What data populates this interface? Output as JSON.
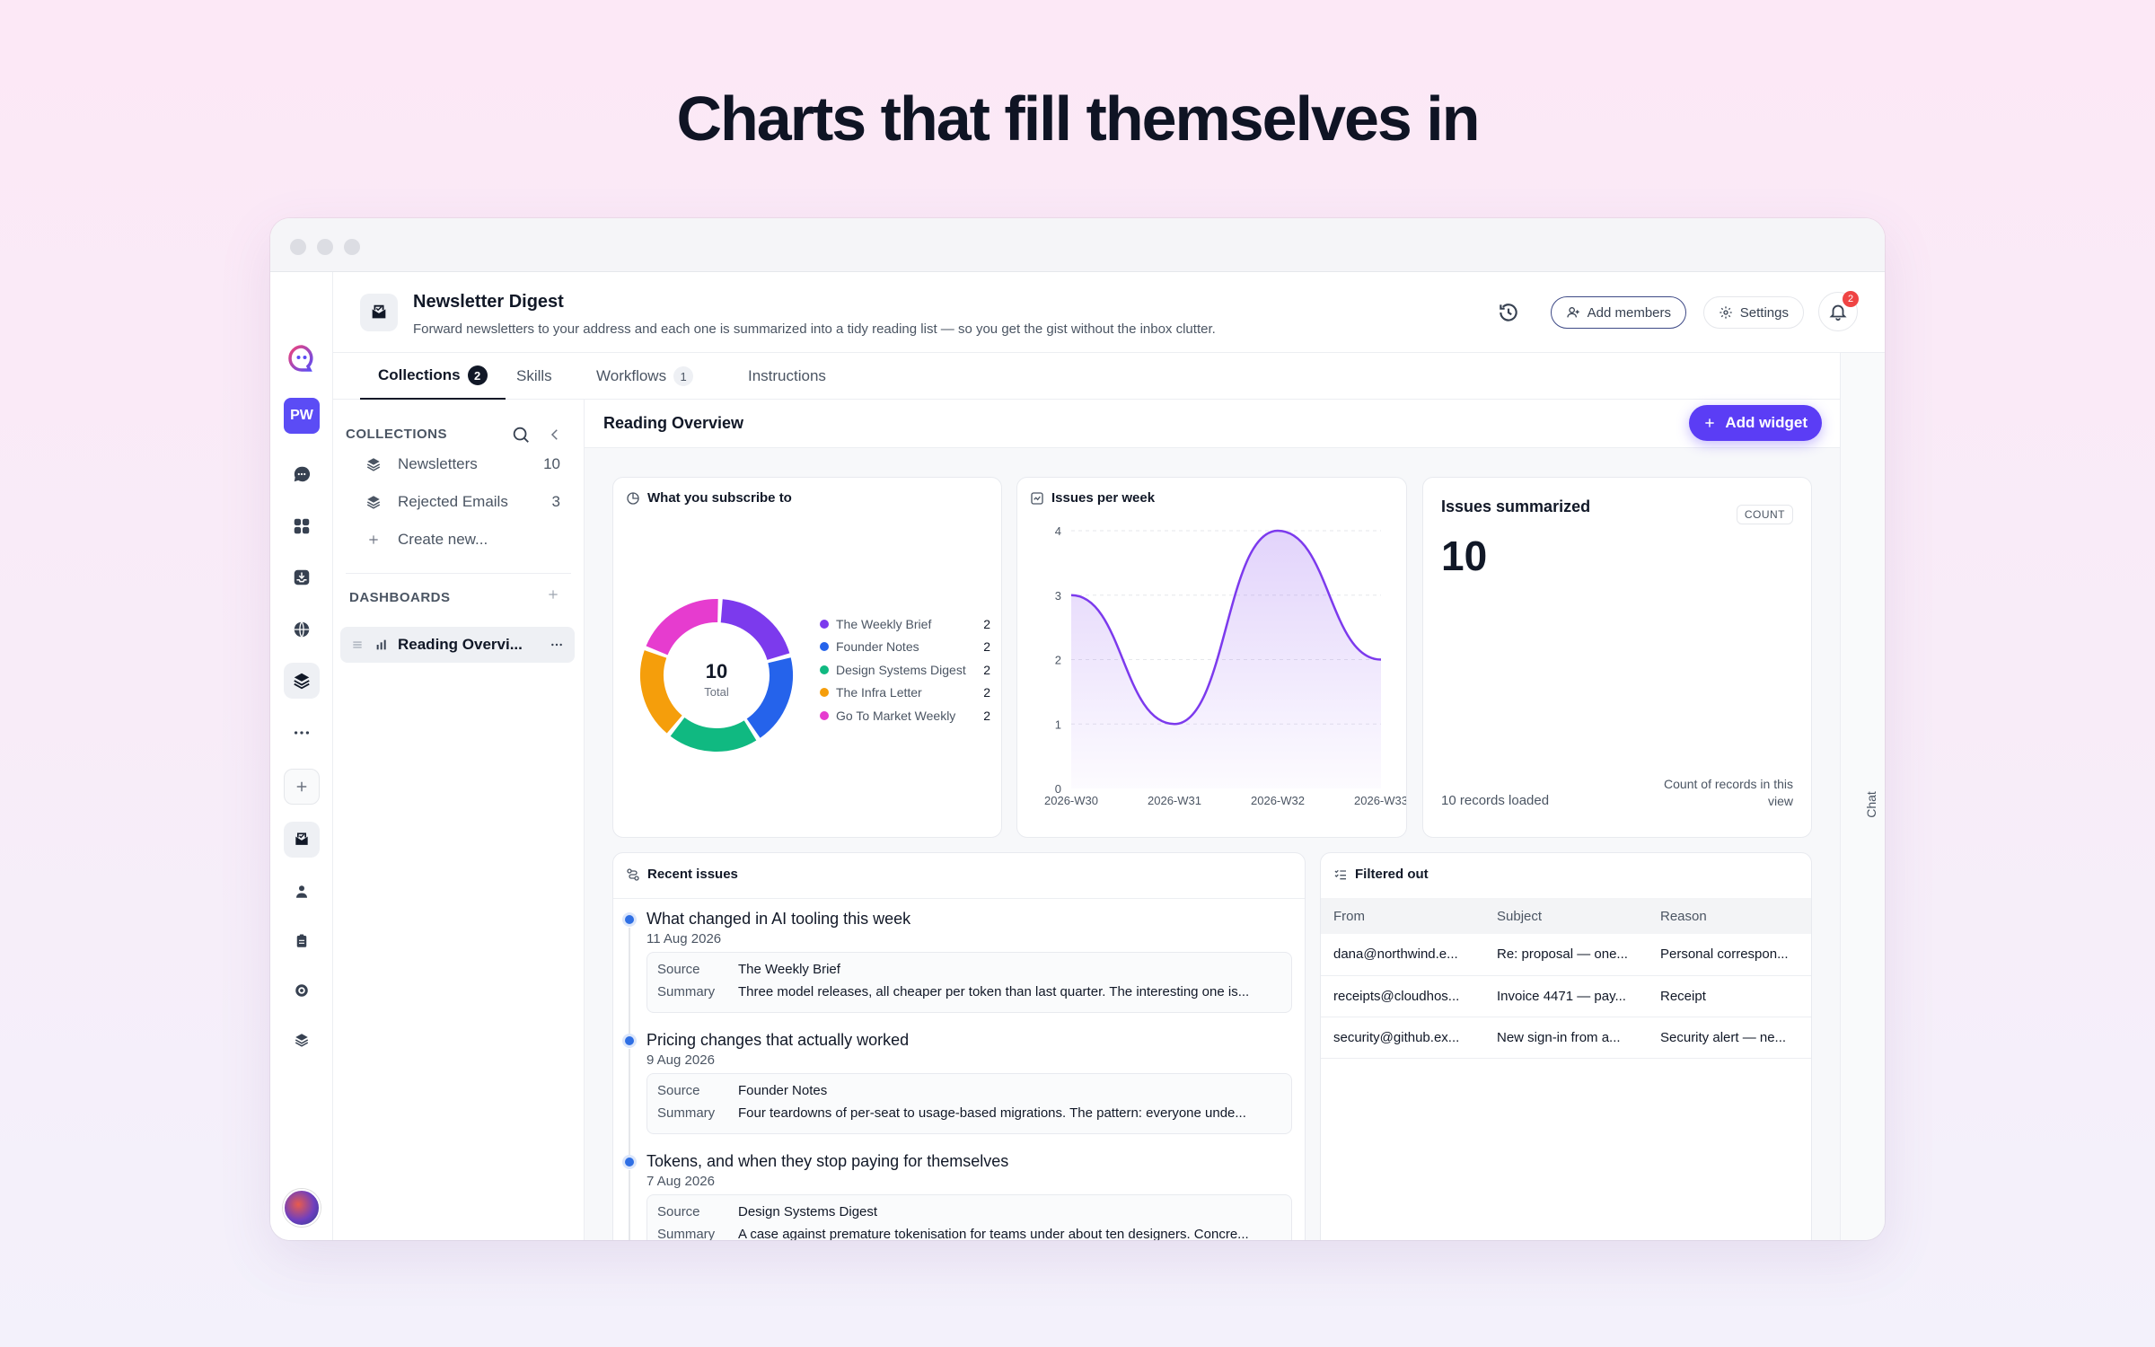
{
  "hero": {
    "title": "Charts that fill themselves in"
  },
  "rail": {
    "avatar_initials": "PW"
  },
  "header": {
    "title": "Newsletter Digest",
    "description": "Forward newsletters to your address and each one is summarized into a tidy reading list — so you get the gist without the inbox clutter.",
    "add_members_label": "Add members",
    "settings_label": "Settings",
    "notification_count": "2"
  },
  "tabs": [
    {
      "label": "Collections",
      "count": "2"
    },
    {
      "label": "Skills"
    },
    {
      "label": "Workflows",
      "count": "1"
    },
    {
      "label": "Instructions"
    }
  ],
  "chat_label": "Chat",
  "sidebar": {
    "collections_heading": "COLLECTIONS",
    "collections": [
      {
        "label": "Newsletters",
        "count": "10"
      },
      {
        "label": "Rejected Emails",
        "count": "3"
      }
    ],
    "create_new": "Create new...",
    "dashboards_heading": "DASHBOARDS",
    "dashboards": [
      {
        "label": "Reading Overvi..."
      }
    ]
  },
  "main": {
    "title": "Reading Overview",
    "add_widget_label": "Add widget"
  },
  "donut_card": {
    "title": "What you subscribe to",
    "center_value": "10",
    "center_label": "Total"
  },
  "line_card": {
    "title": "Issues per week"
  },
  "kpi_card": {
    "title": "Issues summarized",
    "badge": "COUNT",
    "value": "10",
    "footer": "10 records loaded",
    "note": "Count of records in this view"
  },
  "recent_card": {
    "title": "Recent issues",
    "source_key": "Source",
    "summary_key": "Summary",
    "items": [
      {
        "title": "What changed in AI tooling this week",
        "date": "11 Aug 2026",
        "source": "The Weekly Brief",
        "summary": "Three model releases, all cheaper per token than last quarter. The interesting one is..."
      },
      {
        "title": "Pricing changes that actually worked",
        "date": "9 Aug 2026",
        "source": "Founder Notes",
        "summary": "Four teardowns of per-seat to usage-based migrations. The pattern: everyone unde..."
      },
      {
        "title": "Tokens, and when they stop paying for themselves",
        "date": "7 Aug 2026",
        "source": "Design Systems Digest",
        "summary": "A case against premature tokenisation for teams under about ten designers. Concre..."
      }
    ]
  },
  "filtered_card": {
    "title": "Filtered out",
    "columns": [
      "From",
      "Subject",
      "Reason"
    ],
    "rows": [
      [
        "dana@northwind.e...",
        "Re: proposal — one...",
        "Personal correspon..."
      ],
      [
        "receipts@cloudhos...",
        "Invoice 4471 — pay...",
        "Receipt"
      ],
      [
        "security@github.ex...",
        "New sign-in from a...",
        "Security alert — ne..."
      ]
    ]
  },
  "chart_data": [
    {
      "type": "pie",
      "title": "What you subscribe to",
      "categories": [
        "The Weekly Brief",
        "Founder Notes",
        "Design Systems Digest",
        "The Infra Letter",
        "Go To Market Weekly"
      ],
      "values": [
        2,
        2,
        2,
        2,
        2
      ],
      "colors": [
        "#7c3aed",
        "#2563eb",
        "#10b981",
        "#f59e0b",
        "#e63ccf"
      ],
      "center_value": "10",
      "center_label": "Total",
      "legend": "right"
    },
    {
      "type": "area",
      "title": "Issues per week",
      "categories": [
        "2026-W30",
        "2026-W31",
        "2026-W32",
        "2026-W33"
      ],
      "values": [
        3,
        1,
        4,
        2
      ],
      "ylim": [
        0,
        4
      ],
      "yticks": [
        0,
        1,
        2,
        3,
        4
      ],
      "color": "#7c3aed",
      "grid": true
    }
  ]
}
